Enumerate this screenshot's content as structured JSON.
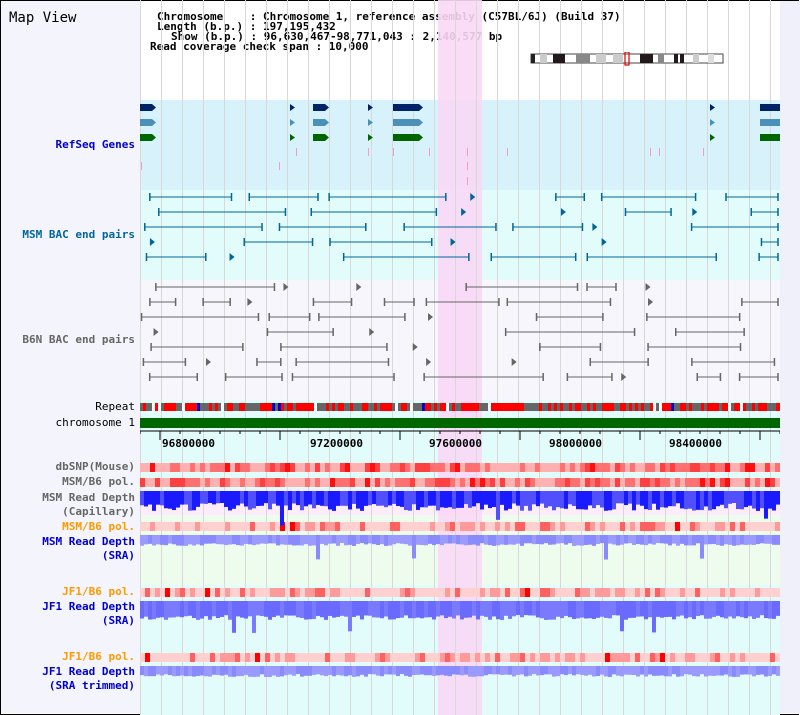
{
  "header": {
    "title": "Map View",
    "chromosome_label": "Chromosome    : Chromosome 1, reference assembly (C57BL/6J) (Build 37)",
    "length_label": "Length (b.p.) : 197,195,432",
    "show_label": "Show (b.p.) : 96,630,467-98,771,043 : 2,140,577 bp",
    "coverage_label": "Read coverage check span : 10,000"
  },
  "ideogram": {
    "selected_region_color": "#e00000"
  },
  "tracks": [
    {
      "id": "refseq",
      "label": "RefSeq Genes",
      "color": "#0000cc"
    },
    {
      "id": "msm_bac",
      "label": "MSM BAC end pairs",
      "color": "#006699"
    },
    {
      "id": "b6n_bac",
      "label": "B6N BAC end pairs",
      "color": "#666666"
    },
    {
      "id": "repeat",
      "label": "Repeat",
      "color": "#000000"
    },
    {
      "id": "chromosome",
      "label": "chromosome 1",
      "color": "#000000"
    },
    {
      "id": "dbsnp",
      "label": "dbSNP(Mouse)",
      "color": "#666666"
    },
    {
      "id": "msm_b6_pol_1",
      "label": "MSM/B6 pol.",
      "color": "#666666"
    },
    {
      "id": "msm_depth_cap",
      "label": "MSM Read Depth\n(Capillary)",
      "color": "#666666"
    },
    {
      "id": "msm_b6_pol_2",
      "label": "MSM/B6 pol.",
      "color": "#ff9900"
    },
    {
      "id": "msm_depth_sra",
      "label": "MSM Read Depth\n(SRA)",
      "color": "#0000cc"
    },
    {
      "id": "jf1_b6_pol_1",
      "label": "JF1/B6 pol.",
      "color": "#ff9900"
    },
    {
      "id": "jf1_depth_sra",
      "label": "JF1 Read Depth\n(SRA)",
      "color": "#0000cc"
    },
    {
      "id": "jf1_b6_pol_2",
      "label": "JF1/B6 pol.",
      "color": "#ff9900"
    },
    {
      "id": "jf1_depth_trim",
      "label": "JF1 Read Depth\n(SRA trimmed)",
      "color": "#0000cc"
    }
  ],
  "axis": {
    "ticks": [
      "96800000",
      "97200000",
      "97600000",
      "98000000",
      "98400000"
    ]
  },
  "colors": {
    "highlight": "#fad8f6",
    "refseq_bg": "#d8f2fc",
    "bac_bg": "#e2fcfc",
    "b6n_bg": "#f6f6fc",
    "gene_dark": "#002266",
    "gene_mid": "#4a90b8",
    "gene_green": "#006600",
    "msm_bac": "#006699",
    "b6n_bac": "#666666",
    "depth_blue": "#1a1aff",
    "depth_light": "#7a7aff",
    "chromosome_bar": "#006600"
  }
}
